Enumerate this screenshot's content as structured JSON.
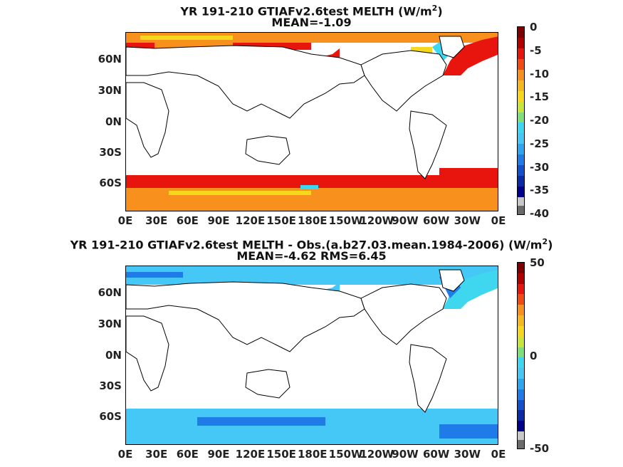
{
  "chart_data": [
    {
      "type": "heatmap",
      "title_line1": "YR 191-210 GTIAFv2.6test  MELTH (W/m",
      "title_sup": "2",
      "title_close": ")",
      "title_line2": "MEAN=-1.09",
      "yticks": [
        "60N",
        "30N",
        "0N",
        "30S",
        "60S"
      ],
      "xticks": [
        "0E",
        "30E",
        "60E",
        "90E",
        "120E",
        "150E",
        "180E",
        "150W",
        "120W",
        "90W",
        "60W",
        "30W",
        "0E"
      ],
      "colorbar_ticks": [
        "0",
        "-5",
        "-10",
        "-15",
        "-20",
        "-25",
        "-30",
        "-35",
        "-40"
      ],
      "colorbar_range": [
        -40,
        0
      ]
    },
    {
      "type": "heatmap",
      "title_line1": "YR 191-210 GTIAFv2.6test MELTH - Obs.(a.b27.03.mean.1984-2006) (W/m",
      "title_sup": "2",
      "title_close": ")",
      "title_line2": "MEAN=-4.62 RMS=6.45",
      "yticks": [
        "60N",
        "30N",
        "0N",
        "30S",
        "60S"
      ],
      "xticks": [
        "0E",
        "30E",
        "60E",
        "90E",
        "120E",
        "150E",
        "180E",
        "150W",
        "120W",
        "90W",
        "60W",
        "30W",
        "0E"
      ],
      "colorbar_ticks": [
        "50",
        "0",
        "-50"
      ],
      "colorbar_range": [
        -50,
        50
      ]
    }
  ],
  "colors": {
    "red": "#e8140e",
    "orange": "#f7901c",
    "yellow": "#f5d81e",
    "cyan": "#3fd6f0",
    "lightblue": "#45c8f5",
    "blue": "#1f7be8",
    "coast": "#000000"
  }
}
